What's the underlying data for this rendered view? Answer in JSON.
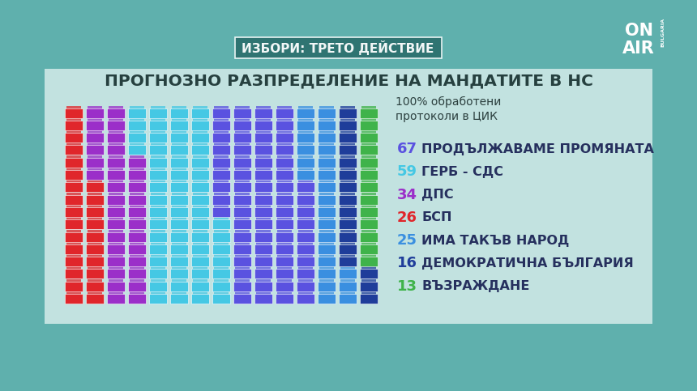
{
  "chart_data": {
    "type": "waffle",
    "header": "ИЗБОРИ: ТРЕТО ДЕЙСТВИЕ",
    "title": "ПРОГНОЗНО РАЗПРЕДЕЛЕНИЕ НА МАНДАТИТЕ В НС",
    "subtitle": [
      "100% обработени",
      "протоколи в ЦИК"
    ],
    "logo": [
      "ON",
      "AIR",
      "BULGARIA"
    ],
    "categories": [
      "ПРОДЪЛЖАВАМЕ ПРОМЯНАТА",
      "ГЕРБ - СДС",
      "ДПС",
      "БСП",
      "ИМА ТАКЪВ НАРОД",
      "ДЕМОКРАТИЧНА БЪЛГАРИЯ",
      "ВЪЗРАЖДАНЕ"
    ],
    "values": [
      67,
      59,
      34,
      26,
      25,
      16,
      13
    ],
    "colors": [
      "#5a52e0",
      "#45c8e4",
      "#9b2fc9",
      "#e0262b",
      "#3a8fe0",
      "#1f3d9a",
      "#3fb34a"
    ],
    "data_labels": true
  }
}
